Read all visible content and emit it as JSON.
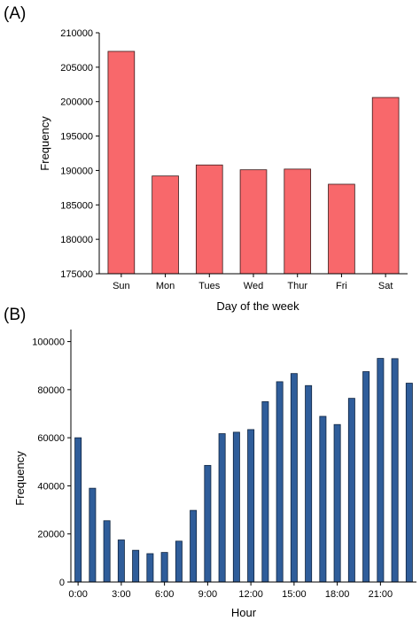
{
  "chart_data": [
    {
      "type": "bar",
      "panel_label": "(A)",
      "categories": [
        "Sun",
        "Mon",
        "Tues",
        "Wed",
        "Thur",
        "Fri",
        "Sat"
      ],
      "values": [
        207300,
        189200,
        190800,
        190100,
        190200,
        188000,
        200600
      ],
      "xlabel": "Day of the week",
      "ylabel": "Frequency",
      "ylim": [
        175000,
        210000
      ],
      "yticks": [
        175000,
        180000,
        185000,
        190000,
        195000,
        200000,
        205000,
        210000
      ],
      "ytick_labels": [
        "175000",
        "180000",
        "185000",
        "190000",
        "195000",
        "200000",
        "205000",
        "210000"
      ],
      "grid": false,
      "colors": {
        "bar_fill": "#f8686b",
        "bar_edge": "#3a1a1a"
      }
    },
    {
      "type": "bar",
      "panel_label": "(B)",
      "categories": [
        "0:00",
        "1:00",
        "2:00",
        "3:00",
        "4:00",
        "5:00",
        "6:00",
        "7:00",
        "8:00",
        "9:00",
        "10:00",
        "11:00",
        "12:00",
        "13:00",
        "14:00",
        "15:00",
        "16:00",
        "17:00",
        "18:00",
        "19:00",
        "20:00",
        "21:00",
        "22:00",
        "23:00"
      ],
      "values": [
        60000,
        39000,
        25500,
        17500,
        13200,
        11800,
        12300,
        17000,
        29800,
        48500,
        61700,
        62300,
        63400,
        75000,
        83300,
        86700,
        81700,
        68900,
        65500,
        76400,
        87500,
        93000,
        92900,
        82700
      ],
      "xtick_labels": [
        "0:00",
        "3:00",
        "6:00",
        "9:00",
        "12:00",
        "15:00",
        "18:00",
        "21:00"
      ],
      "xlabel": "Hour",
      "ylabel": "Frequency",
      "ylim": [
        0,
        105000
      ],
      "yticks": [
        0,
        20000,
        40000,
        60000,
        80000,
        100000
      ],
      "ytick_labels": [
        "0",
        "20000",
        "40000",
        "60000",
        "80000",
        "100000"
      ],
      "grid": false,
      "colors": {
        "bar_fill": "#2f5d9a",
        "bar_edge": "#0f2440"
      }
    }
  ]
}
